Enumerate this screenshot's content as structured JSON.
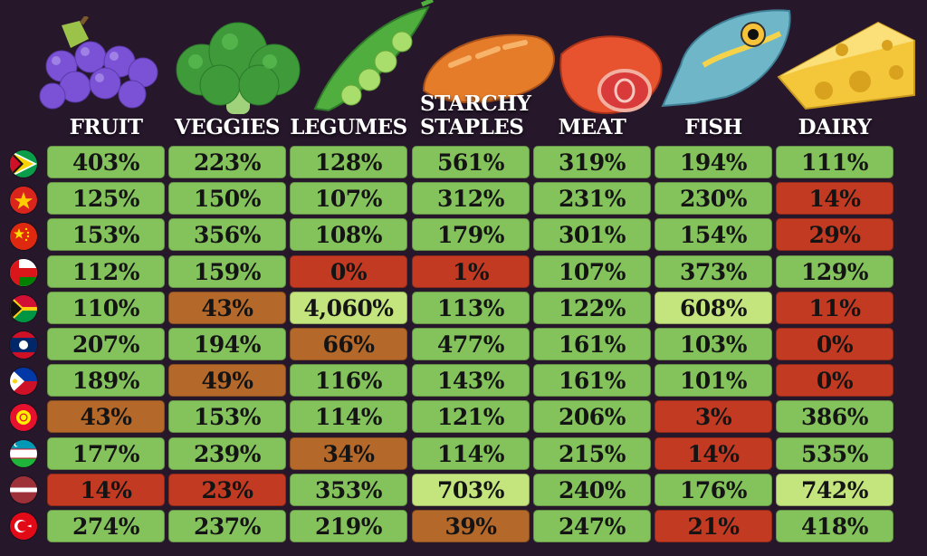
{
  "colors": {
    "background": "#26172b",
    "high": "#c4e47e",
    "good": "#84c25c",
    "mid": "#b4682a",
    "low": "#c23a22"
  },
  "icons": [
    "grapes-icon",
    "broccoli-icon",
    "peapod-icon",
    "bread-icon",
    "meat-icon",
    "fish-icon",
    "cheese-icon"
  ],
  "chart_data": {
    "type": "table",
    "columns": [
      "FRUIT",
      "VEGGIES",
      "LEGUMES",
      "STARCHY STAPLES",
      "MEAT",
      "FISH",
      "DAIRY"
    ],
    "rows": [
      {
        "flag": "guyana-flag",
        "values": [
          "403%",
          "223%",
          "128%",
          "561%",
          "319%",
          "194%",
          "111%"
        ]
      },
      {
        "flag": "vietnam-flag",
        "values": [
          "125%",
          "150%",
          "107%",
          "312%",
          "231%",
          "230%",
          "14%"
        ]
      },
      {
        "flag": "china-flag",
        "values": [
          "153%",
          "356%",
          "108%",
          "179%",
          "301%",
          "154%",
          "29%"
        ]
      },
      {
        "flag": "oman-flag",
        "values": [
          "112%",
          "159%",
          "0%",
          "1%",
          "107%",
          "373%",
          "129%"
        ]
      },
      {
        "flag": "vanuatu-flag",
        "values": [
          "110%",
          "43%",
          "4,060%",
          "113%",
          "122%",
          "608%",
          "11%"
        ]
      },
      {
        "flag": "laos-flag",
        "values": [
          "207%",
          "194%",
          "66%",
          "477%",
          "161%",
          "103%",
          "0%"
        ]
      },
      {
        "flag": "philippines-flag",
        "values": [
          "189%",
          "49%",
          "116%",
          "143%",
          "161%",
          "101%",
          "0%"
        ]
      },
      {
        "flag": "kyrgyzstan-flag",
        "values": [
          "43%",
          "153%",
          "114%",
          "121%",
          "206%",
          "3%",
          "386%"
        ]
      },
      {
        "flag": "uzbekistan-flag",
        "values": [
          "177%",
          "239%",
          "34%",
          "114%",
          "215%",
          "14%",
          "535%"
        ]
      },
      {
        "flag": "latvia-flag",
        "values": [
          "14%",
          "23%",
          "353%",
          "703%",
          "240%",
          "176%",
          "742%"
        ]
      },
      {
        "flag": "turkey-flag",
        "values": [
          "274%",
          "237%",
          "219%",
          "39%",
          "247%",
          "21%",
          "418%"
        ]
      }
    ]
  }
}
